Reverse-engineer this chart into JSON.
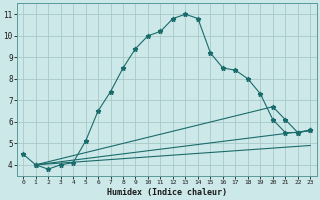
{
  "title": "",
  "xlabel": "Humidex (Indice chaleur)",
  "xlim": [
    -0.5,
    23.5
  ],
  "ylim": [
    3.5,
    11.5
  ],
  "xticks": [
    0,
    1,
    2,
    3,
    4,
    5,
    6,
    7,
    8,
    9,
    10,
    11,
    12,
    13,
    14,
    15,
    16,
    17,
    18,
    19,
    20,
    21,
    22,
    23
  ],
  "yticks": [
    4,
    5,
    6,
    7,
    8,
    9,
    10,
    11
  ],
  "bg_color": "#cde8e8",
  "grid_color": "#a8c8c8",
  "line_color": "#1a6b6b",
  "line1_x": [
    0,
    1,
    2,
    3,
    4,
    5,
    6,
    7,
    8,
    9,
    10,
    11,
    12,
    13,
    14,
    15,
    16,
    17,
    18,
    19,
    20,
    21,
    22,
    23
  ],
  "line1_y": [
    4.5,
    4.0,
    3.8,
    4.0,
    4.1,
    5.1,
    6.5,
    7.4,
    8.5,
    9.4,
    10.0,
    10.2,
    10.8,
    11.0,
    10.8,
    9.2,
    8.5,
    8.4,
    8.0,
    7.3,
    6.1,
    5.5,
    5.5,
    5.6
  ],
  "line2_x": [
    1,
    23
  ],
  "line2_y": [
    4.0,
    5.6
  ],
  "line3_x": [
    1,
    20,
    21,
    22,
    23
  ],
  "line3_y": [
    4.0,
    6.7,
    6.1,
    5.5,
    5.6
  ],
  "line4_x": [
    1,
    23
  ],
  "line4_y": [
    4.0,
    4.9
  ]
}
